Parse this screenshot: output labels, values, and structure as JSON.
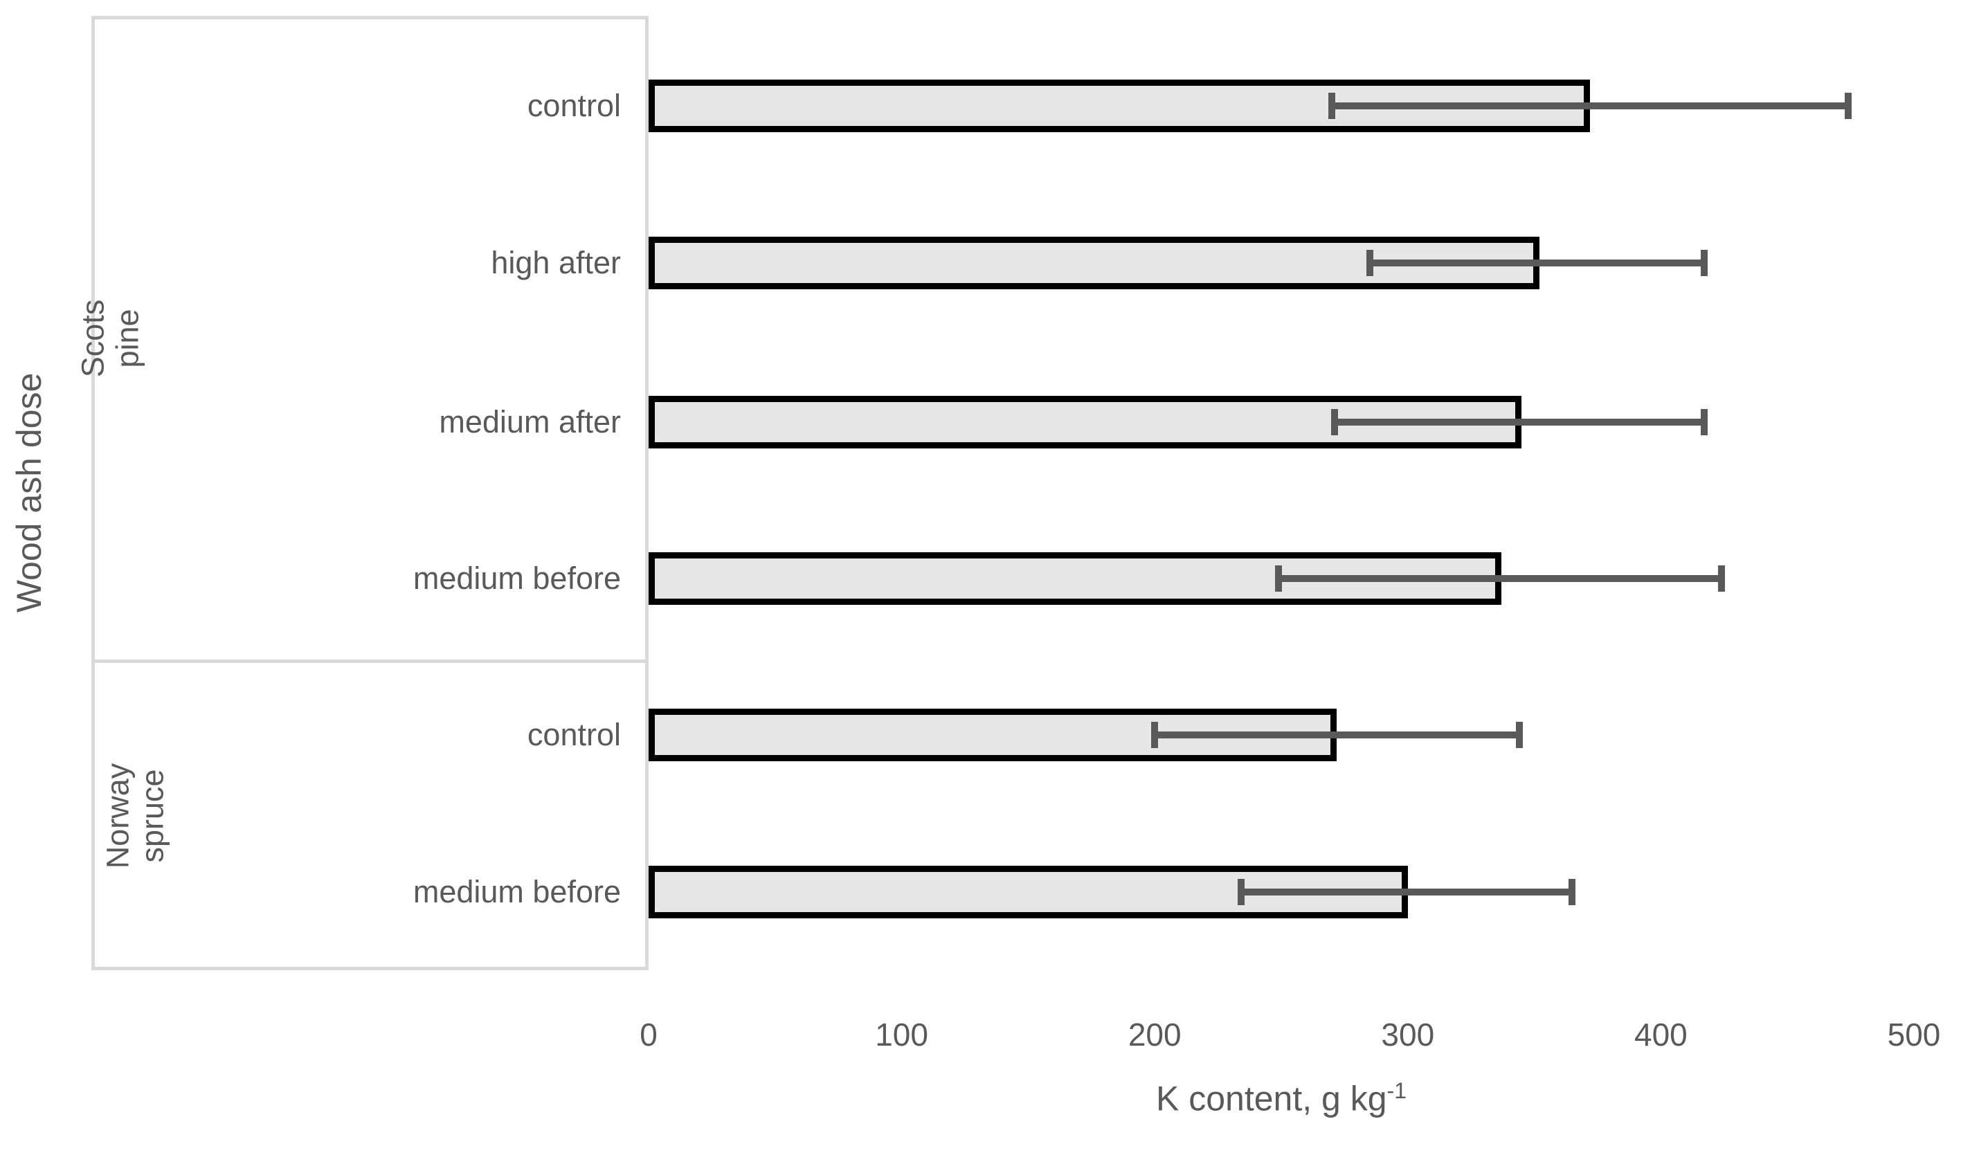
{
  "figure": {
    "x_axis_title_text": "K content, g kg",
    "x_axis_title_superscript": "-1",
    "x_axis_title_full": "K content, g kg⁻¹",
    "y_axis_title": "Wood ash dose"
  },
  "chart_data": {
    "type": "bar",
    "orientation": "horizontal",
    "title": "",
    "xlabel": "K content, g kg⁻¹",
    "ylabel": "Wood ash dose",
    "xlim": [
      0,
      500
    ],
    "x_ticks": [
      0,
      100,
      200,
      300,
      400,
      500
    ],
    "grid": false,
    "legend": "none",
    "bar_fill_color": "#e6e6e6",
    "bar_border_color": "#000000",
    "error_bar_color": "#595959",
    "axis_text_color": "#595959",
    "label_box_border_color": "#d9d9d9",
    "groups": [
      {
        "name": "Scots pine",
        "rows": [
          {
            "label": "control",
            "value": 372,
            "error_low": 270,
            "error_high": 474
          },
          {
            "label": "high after",
            "value": 352,
            "error_low": 285,
            "error_high": 417
          },
          {
            "label": "medium after",
            "value": 345,
            "error_low": 271,
            "error_high": 417
          },
          {
            "label": "medium before",
            "value": 337,
            "error_low": 249,
            "error_high": 424
          }
        ]
      },
      {
        "name": "Norway spruce",
        "rows": [
          {
            "label": "control",
            "value": 272,
            "error_low": 200,
            "error_high": 344
          },
          {
            "label": "medium before",
            "value": 300,
            "error_low": 234,
            "error_high": 365
          }
        ]
      }
    ]
  }
}
